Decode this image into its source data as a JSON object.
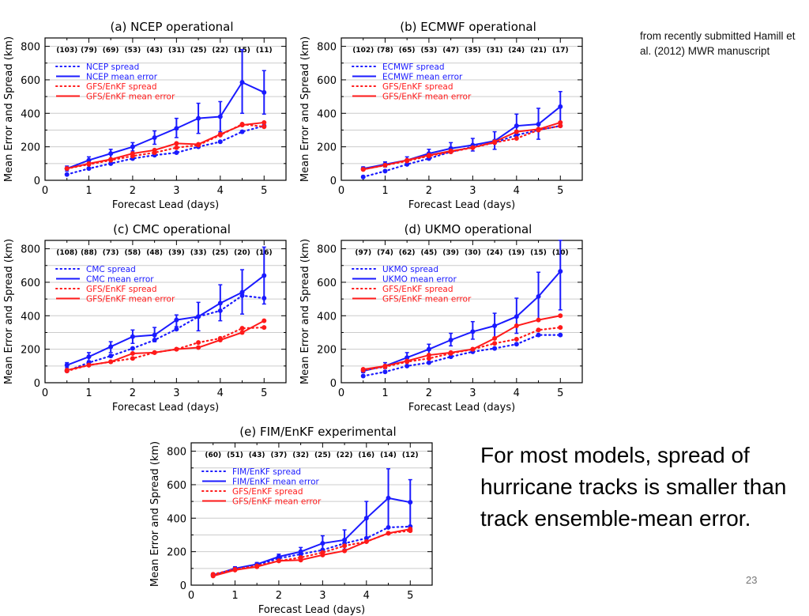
{
  "slide": {
    "source_note": "from  recently submitted Hamill et al. (2012) MWR manuscript",
    "summary": "For most models, spread of hurricane tracks is smaller than track ensemble-mean error.",
    "page_number": "23"
  },
  "colors": {
    "blue": "#1a1aff",
    "red": "#ff1a1a",
    "grid": "#cccccc",
    "axis": "#000000"
  },
  "chart_data": [
    {
      "type": "line",
      "title": "(a) NCEP operational",
      "xlabel": "Forecast Lead (days)",
      "ylabel": "Mean Error and Spread (km)",
      "xlim": [
        0,
        5.5
      ],
      "ylim": [
        0,
        850
      ],
      "xticks": [
        0,
        1,
        2,
        3,
        4,
        5
      ],
      "yticks": [
        0,
        200,
        400,
        600,
        800
      ],
      "grid": true,
      "legend_position": "upper-left",
      "x": [
        0.5,
        1,
        1.5,
        2,
        2.5,
        3,
        3.5,
        4,
        4.5,
        5
      ],
      "sample_counts": [
        "(103)",
        "(79)",
        "(69)",
        "(53)",
        "(43)",
        "(31)",
        "(25)",
        "(22)",
        "(15)",
        "(11)"
      ],
      "series": [
        {
          "name": "NCEP spread",
          "color": "blue",
          "style": "dotted",
          "values": [
            35,
            70,
            100,
            130,
            150,
            165,
            200,
            230,
            290,
            325
          ]
        },
        {
          "name": "NCEP mean error",
          "color": "blue",
          "style": "solid",
          "values": [
            70,
            120,
            160,
            200,
            255,
            310,
            370,
            380,
            585,
            525
          ],
          "err_low": [
            55,
            100,
            130,
            175,
            215,
            255,
            280,
            290,
            400,
            395
          ],
          "err_high": [
            85,
            140,
            185,
            225,
            295,
            370,
            460,
            470,
            780,
            655
          ]
        },
        {
          "name": "GFS/EnKF spread",
          "color": "red",
          "style": "dotted",
          "values": [
            70,
            95,
            120,
            145,
            165,
            195,
            210,
            270,
            335,
            320
          ]
        },
        {
          "name": "GFS/EnKF mean error",
          "color": "red",
          "style": "solid",
          "values": [
            70,
            100,
            125,
            160,
            180,
            220,
            215,
            275,
            330,
            345
          ]
        }
      ]
    },
    {
      "type": "line",
      "title": "(b) ECMWF operational",
      "xlabel": "Forecast Lead (days)",
      "ylabel": "Mean Error and Spread (km)",
      "xlim": [
        0,
        5.5
      ],
      "ylim": [
        0,
        850
      ],
      "xticks": [
        0,
        1,
        2,
        3,
        4,
        5
      ],
      "yticks": [
        0,
        200,
        400,
        600,
        800
      ],
      "grid": true,
      "legend_position": "upper-left",
      "x": [
        0.5,
        1,
        1.5,
        2,
        2.5,
        3,
        3.5,
        4,
        4.5,
        5
      ],
      "sample_counts": [
        "(102)",
        "(78)",
        "(65)",
        "(53)",
        "(47)",
        "(35)",
        "(31)",
        "(24)",
        "(21)",
        "(17)"
      ],
      "series": [
        {
          "name": "ECMWF spread",
          "color": "blue",
          "style": "dotted",
          "values": [
            20,
            55,
            95,
            130,
            170,
            200,
            225,
            270,
            300,
            325
          ]
        },
        {
          "name": "ECMWF mean error",
          "color": "blue",
          "style": "solid",
          "values": [
            70,
            95,
            120,
            160,
            190,
            210,
            235,
            325,
            335,
            440
          ],
          "err_low": [
            60,
            80,
            100,
            135,
            165,
            175,
            185,
            255,
            245,
            350
          ],
          "err_high": [
            80,
            110,
            140,
            185,
            225,
            250,
            290,
            395,
            430,
            530
          ]
        },
        {
          "name": "GFS/EnKF spread",
          "color": "red",
          "style": "dotted",
          "values": [
            65,
            90,
            115,
            145,
            170,
            195,
            225,
            250,
            300,
            325
          ]
        },
        {
          "name": "GFS/EnKF mean error",
          "color": "red",
          "style": "solid",
          "values": [
            65,
            90,
            120,
            150,
            175,
            195,
            230,
            290,
            305,
            345
          ]
        }
      ]
    },
    {
      "type": "line",
      "title": "(c) CMC operational",
      "xlabel": "Forecast Lead (days)",
      "ylabel": "Mean Error and Spread (km)",
      "xlim": [
        0,
        5.5
      ],
      "ylim": [
        0,
        850
      ],
      "xticks": [
        0,
        1,
        2,
        3,
        4,
        5
      ],
      "yticks": [
        0,
        200,
        400,
        600,
        800
      ],
      "grid": true,
      "legend_position": "upper-left",
      "x": [
        0.5,
        1,
        1.5,
        2,
        2.5,
        3,
        3.5,
        4,
        4.5,
        5
      ],
      "sample_counts": [
        "(108)",
        "(88)",
        "(73)",
        "(58)",
        "(48)",
        "(39)",
        "(33)",
        "(25)",
        "(20)",
        "(16)"
      ],
      "series": [
        {
          "name": "CMC spread",
          "color": "blue",
          "style": "dotted",
          "values": [
            70,
            120,
            160,
            205,
            255,
            320,
            395,
            430,
            520,
            505
          ]
        },
        {
          "name": "CMC mean error",
          "color": "blue",
          "style": "solid",
          "values": [
            105,
            155,
            215,
            275,
            285,
            375,
            395,
            475,
            540,
            640
          ],
          "err_low": [
            90,
            130,
            180,
            235,
            245,
            335,
            310,
            370,
            410,
            470
          ],
          "err_high": [
            120,
            180,
            245,
            315,
            330,
            405,
            480,
            585,
            675,
            810
          ]
        },
        {
          "name": "GFS/EnKF spread",
          "color": "red",
          "style": "dotted",
          "values": [
            70,
            105,
            125,
            145,
            180,
            200,
            240,
            265,
            325,
            330
          ]
        },
        {
          "name": "GFS/EnKF mean error",
          "color": "red",
          "style": "solid",
          "values": [
            75,
            105,
            125,
            175,
            180,
            200,
            210,
            255,
            300,
            370
          ]
        }
      ]
    },
    {
      "type": "line",
      "title": "(d) UKMO operational",
      "xlabel": "Forecast Lead (days)",
      "ylabel": "Mean Error and Spread (km)",
      "xlim": [
        0,
        5.5
      ],
      "ylim": [
        0,
        850
      ],
      "xticks": [
        0,
        1,
        2,
        3,
        4,
        5
      ],
      "yticks": [
        0,
        200,
        400,
        600,
        800
      ],
      "grid": true,
      "legend_position": "upper-left",
      "x": [
        0.5,
        1,
        1.5,
        2,
        2.5,
        3,
        3.5,
        4,
        4.5,
        5
      ],
      "sample_counts": [
        "(97)",
        "(74)",
        "(62)",
        "(45)",
        "(39)",
        "(30)",
        "(24)",
        "(19)",
        "(15)",
        "(10)"
      ],
      "series": [
        {
          "name": "UKMO spread",
          "color": "blue",
          "style": "dotted",
          "values": [
            40,
            65,
            100,
            120,
            155,
            185,
            205,
            230,
            285,
            285
          ]
        },
        {
          "name": "UKMO mean error",
          "color": "blue",
          "style": "solid",
          "values": [
            70,
            100,
            150,
            200,
            255,
            305,
            340,
            395,
            515,
            665
          ],
          "err_low": [
            60,
            85,
            125,
            170,
            220,
            260,
            270,
            295,
            370,
            435
          ],
          "err_high": [
            85,
            120,
            180,
            230,
            295,
            365,
            415,
            505,
            660,
            850
          ]
        },
        {
          "name": "GFS/EnKF spread",
          "color": "red",
          "style": "dotted",
          "values": [
            75,
            95,
            125,
            145,
            175,
            200,
            235,
            260,
            315,
            330
          ]
        },
        {
          "name": "GFS/EnKF mean error",
          "color": "red",
          "style": "solid",
          "values": [
            80,
            100,
            130,
            165,
            180,
            200,
            265,
            340,
            375,
            400
          ]
        }
      ]
    },
    {
      "type": "line",
      "title": "(e) FIM/EnKF experimental",
      "xlabel": "Forecast Lead (days)",
      "ylabel": "Mean Error and Spread (km)",
      "xlim": [
        0,
        5.5
      ],
      "ylim": [
        0,
        850
      ],
      "xticks": [
        0,
        1,
        2,
        3,
        4,
        5
      ],
      "yticks": [
        0,
        200,
        400,
        600,
        800
      ],
      "grid": true,
      "legend_position": "upper-left",
      "x": [
        0.5,
        1,
        1.5,
        2,
        2.5,
        3,
        3.5,
        4,
        4.5,
        5
      ],
      "sample_counts": [
        "(60)",
        "(51)",
        "(43)",
        "(37)",
        "(32)",
        "(25)",
        "(22)",
        "(16)",
        "(14)",
        "(12)"
      ],
      "series": [
        {
          "name": "FIM/EnKF spread",
          "color": "blue",
          "style": "dotted",
          "values": [
            60,
            95,
            120,
            160,
            185,
            210,
            250,
            280,
            345,
            350
          ]
        },
        {
          "name": "FIM/EnKF mean error",
          "color": "blue",
          "style": "solid",
          "values": [
            60,
            100,
            125,
            170,
            200,
            250,
            270,
            400,
            520,
            495
          ],
          "err_low": [
            50,
            90,
            115,
            155,
            175,
            205,
            215,
            285,
            345,
            355
          ],
          "err_high": [
            70,
            110,
            135,
            185,
            225,
            295,
            330,
            500,
            695,
            630
          ]
        },
        {
          "name": "GFS/EnKF spread",
          "color": "red",
          "style": "dotted",
          "values": [
            65,
            95,
            115,
            145,
            165,
            195,
            235,
            260,
            310,
            325
          ]
        },
        {
          "name": "GFS/EnKF mean error",
          "color": "red",
          "style": "solid",
          "values": [
            55,
            90,
            110,
            145,
            150,
            180,
            205,
            260,
            310,
            335
          ]
        }
      ]
    }
  ]
}
